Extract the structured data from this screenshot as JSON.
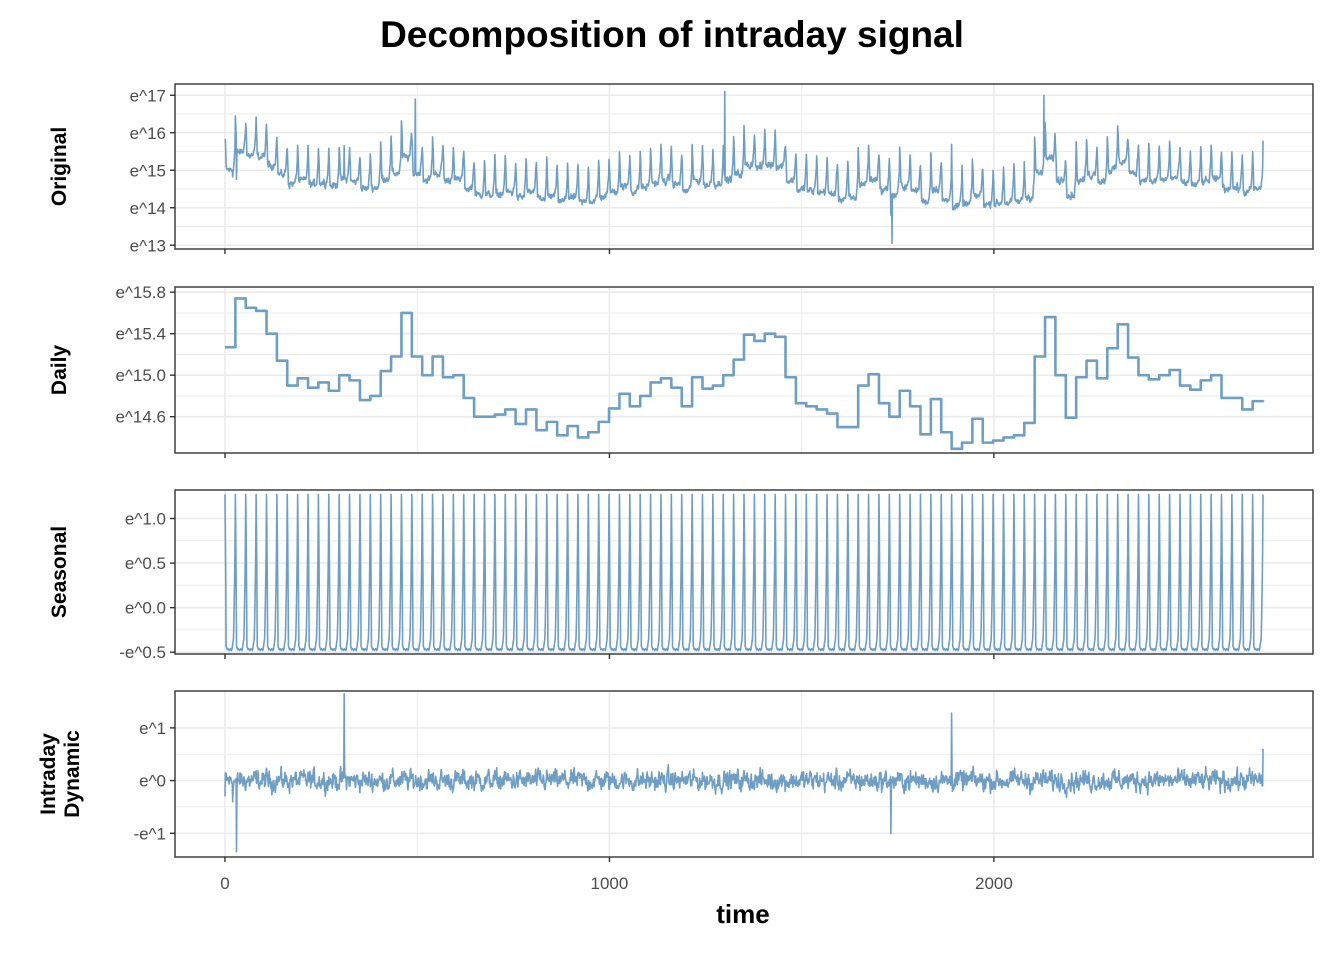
{
  "title": "Decomposition of intraday signal",
  "xlabel": "time",
  "colors": {
    "series": "#6f9ec4",
    "grid": "#ebebeb",
    "border": "#333333"
  },
  "chart_data": {
    "type": "line",
    "title": "Decomposition of intraday signal",
    "xlabel": "time",
    "xlim": [
      -130,
      2830
    ],
    "x_ticks": [
      {
        "value": 0,
        "label": "0"
      },
      {
        "value": 1000,
        "label": "1000"
      },
      {
        "value": 2000,
        "label": "2000"
      }
    ],
    "grid": true,
    "panels": [
      {
        "name": "Original",
        "label_lines": [
          "Original"
        ],
        "ylim": [
          12.9,
          17.3
        ],
        "y_ticks": [
          {
            "value": 17,
            "label": "e^17"
          },
          {
            "value": 16,
            "label": "e^16"
          },
          {
            "value": 15,
            "label": "e^15"
          },
          {
            "value": 14,
            "label": "e^14"
          },
          {
            "value": 13,
            "label": "e^13"
          }
        ],
        "series_summary": {
          "x": [
            0,
            30,
            60,
            120,
            200,
            300,
            400,
            500,
            600,
            700,
            800,
            900,
            1000,
            1100,
            1200,
            1300,
            1400,
            1500,
            1600,
            1700,
            1800,
            1900,
            2000,
            2100,
            2150,
            2200,
            2300,
            2400,
            2500,
            2600,
            2700
          ],
          "y": [
            15.6,
            15.0,
            15.8,
            15.6,
            15.1,
            15.0,
            14.8,
            15.1,
            15.1,
            14.5,
            14.4,
            14.3,
            14.3,
            14.6,
            14.8,
            14.9,
            15.0,
            15.1,
            14.8,
            14.7,
            14.6,
            14.2,
            14.4,
            14.5,
            15.5,
            15.0,
            15.1,
            15.0,
            14.9,
            14.8,
            15.0
          ]
        }
      },
      {
        "name": "Daily",
        "label_lines": [
          "Daily"
        ],
        "ylim": [
          14.25,
          15.85
        ],
        "y_ticks": [
          {
            "value": 15.8,
            "label": "e^15.8"
          },
          {
            "value": 15.4,
            "label": "e^15.4"
          },
          {
            "value": 15.0,
            "label": "e^15.0"
          },
          {
            "value": 14.6,
            "label": "e^14.6"
          }
        ],
        "series": {
          "name": "Daily",
          "step_x": [
            0,
            27,
            54,
            81,
            108,
            135,
            162,
            189,
            216,
            243,
            270,
            297,
            324,
            351,
            378,
            405,
            432,
            459,
            486,
            513,
            540,
            567,
            594,
            621,
            648,
            675,
            702,
            729,
            756,
            783,
            810,
            837,
            864,
            891,
            918,
            945,
            972,
            999,
            1026,
            1053,
            1080,
            1107,
            1134,
            1161,
            1188,
            1215,
            1242,
            1269,
            1296,
            1323,
            1350,
            1377,
            1404,
            1431,
            1458,
            1485,
            1512,
            1539,
            1566,
            1593,
            1620,
            1647,
            1674,
            1701,
            1728,
            1755,
            1782,
            1809,
            1836,
            1863,
            1890,
            1917,
            1944,
            1971,
            1998,
            2025,
            2052,
            2079,
            2106,
            2133,
            2160,
            2187,
            2214,
            2241,
            2268,
            2295,
            2322,
            2349,
            2376,
            2403,
            2430,
            2457,
            2484,
            2511,
            2538,
            2565,
            2592,
            2619,
            2646,
            2673,
            2700
          ],
          "values": [
            15.27,
            15.74,
            15.65,
            15.62,
            15.4,
            15.14,
            14.9,
            14.97,
            14.88,
            14.93,
            14.85,
            15.0,
            14.95,
            14.76,
            14.8,
            15.04,
            15.18,
            15.6,
            15.18,
            15.0,
            15.18,
            14.98,
            15.0,
            14.78,
            14.6,
            14.6,
            14.62,
            14.67,
            14.53,
            14.67,
            14.47,
            14.55,
            14.42,
            14.51,
            14.4,
            14.45,
            14.55,
            14.68,
            14.82,
            14.7,
            14.8,
            14.93,
            14.97,
            14.88,
            14.7,
            14.98,
            14.87,
            14.9,
            15.0,
            15.15,
            15.39,
            15.33,
            15.4,
            15.37,
            14.98,
            14.73,
            14.7,
            14.67,
            14.63,
            14.5,
            14.5,
            14.9,
            15.01,
            14.73,
            14.6,
            14.85,
            14.7,
            14.43,
            14.77,
            14.45,
            14.29,
            14.35,
            14.58,
            14.35,
            14.37,
            14.4,
            14.42,
            14.54,
            15.18,
            15.56,
            15.0,
            14.59,
            14.98,
            15.14,
            14.97,
            15.26,
            15.49,
            15.17,
            15.0,
            14.96,
            15.0,
            15.05,
            14.9,
            14.86,
            14.95,
            15.0,
            14.78,
            14.78,
            14.67,
            14.75,
            14.76
          ]
        }
      },
      {
        "name": "Seasonal",
        "label_lines": [
          "Seasonal"
        ],
        "ylim": [
          -0.52,
          1.32
        ],
        "y_ticks": [
          {
            "value": 1.0,
            "label": "e^1.0"
          },
          {
            "value": 0.5,
            "label": "e^0.5"
          },
          {
            "value": 0.0,
            "label": "e^0.0"
          },
          {
            "value": -0.5,
            "label": "-e^0.5"
          }
        ],
        "series": {
          "name": "Seasonal",
          "period": 27,
          "cycles": 100,
          "peak": 1.27,
          "trough": -0.47
        }
      },
      {
        "name": "Intraday Dynamic",
        "label_lines": [
          "Intraday",
          "Dynamic"
        ],
        "ylim": [
          -1.45,
          1.7
        ],
        "y_ticks": [
          {
            "value": 1,
            "label": "e^1"
          },
          {
            "value": 0,
            "label": "e^0"
          },
          {
            "value": -1,
            "label": "-e^1"
          }
        ],
        "series_summary": {
          "x": [
            0,
            20,
            30,
            310,
            1890,
            1730,
            2700
          ],
          "y": [
            -0.3,
            -0.4,
            -1.35,
            1.65,
            1.28,
            -1.0,
            0.6
          ]
        }
      }
    ]
  }
}
